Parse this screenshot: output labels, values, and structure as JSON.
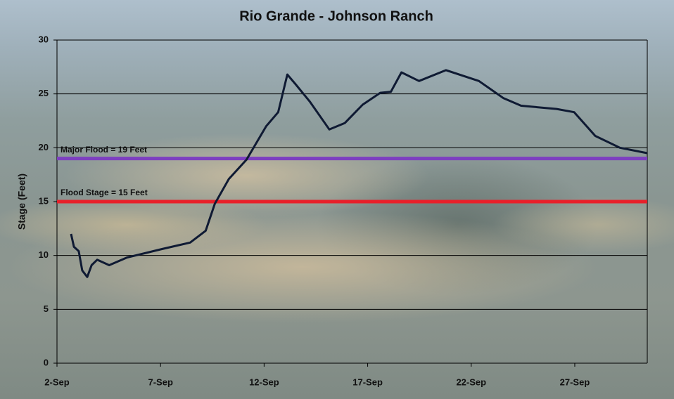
{
  "chart_data": {
    "type": "line",
    "title": "Rio Grande - Johnson Ranch",
    "y_label": "Stage (Feet)",
    "x": [
      2.68,
      2.82,
      3.05,
      3.22,
      3.46,
      3.67,
      3.94,
      4.52,
      5.37,
      7.07,
      8.43,
      9.18,
      9.62,
      10.3,
      11.15,
      12.1,
      12.68,
      13.12,
      13.52,
      14.2,
      15.15,
      15.9,
      16.76,
      17.61,
      18.12,
      18.63,
      19.48,
      20.78,
      22.37,
      23.56,
      24.41,
      26.12,
      26.97,
      27.99,
      29.18,
      30.5
    ],
    "series": [
      {
        "color": "#0f1a33",
        "values": [
          12.0,
          10.8,
          10.4,
          8.6,
          8.0,
          9.1,
          9.6,
          9.1,
          9.8,
          10.6,
          11.2,
          12.3,
          14.8,
          17.1,
          18.9,
          22.0,
          23.3,
          26.8,
          25.9,
          24.3,
          21.7,
          22.3,
          24.0,
          25.1,
          25.2,
          27.0,
          26.2,
          27.2,
          26.2,
          24.6,
          23.9,
          23.6,
          23.3,
          21.1,
          20.0,
          19.5
        ]
      }
    ],
    "reference_lines": [
      {
        "value": 19,
        "label": "Major Flood = 19 Feet",
        "color": "#7d3fc0"
      },
      {
        "value": 15,
        "label": "Flood Stage = 15 Feet",
        "color": "#e8202a"
      }
    ],
    "xlim": [
      2,
      30.5
    ],
    "xticks": [
      {
        "value": 2,
        "label": "2-Sep"
      },
      {
        "value": 7,
        "label": "7-Sep"
      },
      {
        "value": 12,
        "label": "12-Sep"
      },
      {
        "value": 17,
        "label": "17-Sep"
      },
      {
        "value": 22,
        "label": "22-Sep"
      },
      {
        "value": 27,
        "label": "27-Sep"
      }
    ],
    "ylim": [
      0,
      30
    ],
    "yticks": [
      0,
      5,
      10,
      15,
      20,
      25,
      30
    ],
    "grid": true
  }
}
